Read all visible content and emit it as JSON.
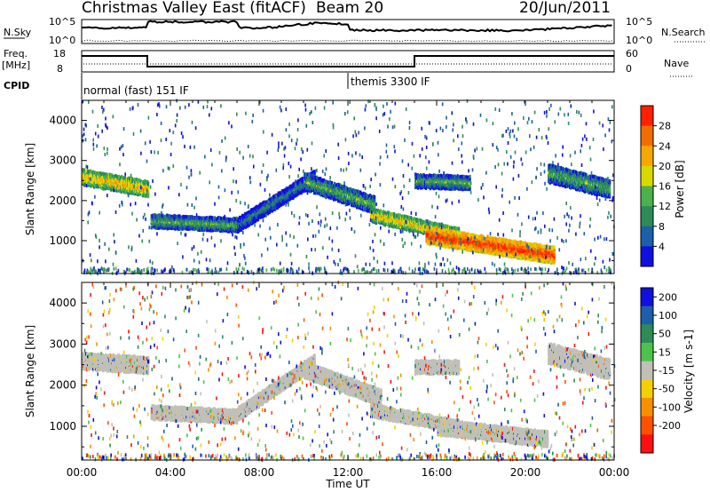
{
  "header": {
    "title": "Christmas Valley East (fitACF)",
    "beam": "Beam 20",
    "date": "20/Jun/2011"
  },
  "panels": {
    "nsky": {
      "label": "N.Sky",
      "top_tick": "10^5",
      "bottom_tick": "10^0",
      "right_label": "N.Search"
    },
    "freq": {
      "label_line1": "Freq.",
      "label_line2": "[MHz]",
      "top_tick": "18",
      "bottom_tick": "8",
      "right_top_tick": "60",
      "right_bottom_tick": "0",
      "right_label": "Nave"
    },
    "cpid": {
      "label": "CPID",
      "mode1": "normal (fast) 151 IF",
      "mode2": "themis 3300 IF"
    }
  },
  "colors": {
    "power": [
      "#1010e0",
      "#1d5fa8",
      "#2e8b57",
      "#4cb04c",
      "#d9d900",
      "#f5a800",
      "#f26d00",
      "#ff2000"
    ],
    "velocity": [
      "#1010e0",
      "#1d5fa8",
      "#2e8b57",
      "#4cc34c",
      "#c0c0b8",
      "#f5d000",
      "#f59000",
      "#ff5000",
      "#ff1010"
    ]
  },
  "chart_data": [
    {
      "type": "heatmap",
      "ylabel": "Slant Range [km]",
      "xlabel": "Time UT",
      "xticks": [
        "00:00",
        "04:00",
        "08:00",
        "12:00",
        "16:00",
        "20:00",
        "00:00"
      ],
      "xlim_hours": [
        0,
        24
      ],
      "yticks": [
        1000,
        2000,
        3000,
        4000
      ],
      "ylim": [
        180,
        4500
      ],
      "colorbar": {
        "label": "Power [dB]",
        "ticks": [
          4,
          8,
          12,
          16,
          20,
          24,
          28
        ]
      },
      "bands": [
        {
          "t0": 0.0,
          "t1": 3.0,
          "r0": 2600,
          "r1": 2300,
          "w": 380,
          "level": 5
        },
        {
          "t0": 3.1,
          "t1": 7.0,
          "r0": 1500,
          "r1": 1400,
          "w": 330,
          "level": 3
        },
        {
          "t0": 7.0,
          "t1": 10.5,
          "r0": 1400,
          "r1": 2600,
          "w": 350,
          "level": 2
        },
        {
          "t0": 10.0,
          "t1": 13.2,
          "r0": 2500,
          "r1": 1900,
          "w": 420,
          "level": 3
        },
        {
          "t0": 13.0,
          "t1": 17.0,
          "r0": 1650,
          "r1": 1150,
          "w": 320,
          "level": 5
        },
        {
          "t0": 15.5,
          "t1": 21.3,
          "r0": 1150,
          "r1": 650,
          "w": 420,
          "level": 7
        },
        {
          "t0": 15.0,
          "t1": 17.5,
          "r0": 2500,
          "r1": 2450,
          "w": 330,
          "level": 3
        },
        {
          "t0": 21.0,
          "t1": 23.8,
          "r0": 2700,
          "r1": 2300,
          "w": 450,
          "level": 3
        }
      ]
    },
    {
      "type": "heatmap",
      "ylabel": "Slant Range [km]",
      "xlabel": "Time UT",
      "xticks": [
        "00:00",
        "04:00",
        "08:00",
        "12:00",
        "16:00",
        "20:00",
        "00:00"
      ],
      "xlim_hours": [
        0,
        24
      ],
      "yticks": [
        1000,
        2000,
        3000,
        4000
      ],
      "ylim": [
        180,
        4500
      ],
      "colorbar": {
        "label": "Velocity [m s-1]",
        "ticks": [
          "200",
          "100",
          "50",
          "15",
          "-15",
          "-50",
          "-100",
          "-200"
        ]
      },
      "bands": [
        {
          "t0": 0.0,
          "t1": 3.0,
          "r0": 2600,
          "r1": 2500,
          "w": 400,
          "level": 4
        },
        {
          "t0": 3.1,
          "t1": 7.0,
          "r0": 1350,
          "r1": 1250,
          "w": 330,
          "level": 4
        },
        {
          "t0": 7.0,
          "t1": 10.5,
          "r0": 1300,
          "r1": 2600,
          "w": 320,
          "level": 4
        },
        {
          "t0": 10.0,
          "t1": 13.5,
          "r0": 2400,
          "r1": 1700,
          "w": 400,
          "level": 4
        },
        {
          "t0": 13.0,
          "t1": 17.0,
          "r0": 1400,
          "r1": 1000,
          "w": 300,
          "level": 4
        },
        {
          "t0": 16.0,
          "t1": 21.0,
          "r0": 1000,
          "r1": 700,
          "w": 380,
          "level": 4
        },
        {
          "t0": 15.0,
          "t1": 17.0,
          "r0": 2450,
          "r1": 2450,
          "w": 320,
          "level": 4
        },
        {
          "t0": 21.0,
          "t1": 23.8,
          "r0": 2800,
          "r1": 2400,
          "w": 500,
          "level": 4
        }
      ]
    }
  ]
}
